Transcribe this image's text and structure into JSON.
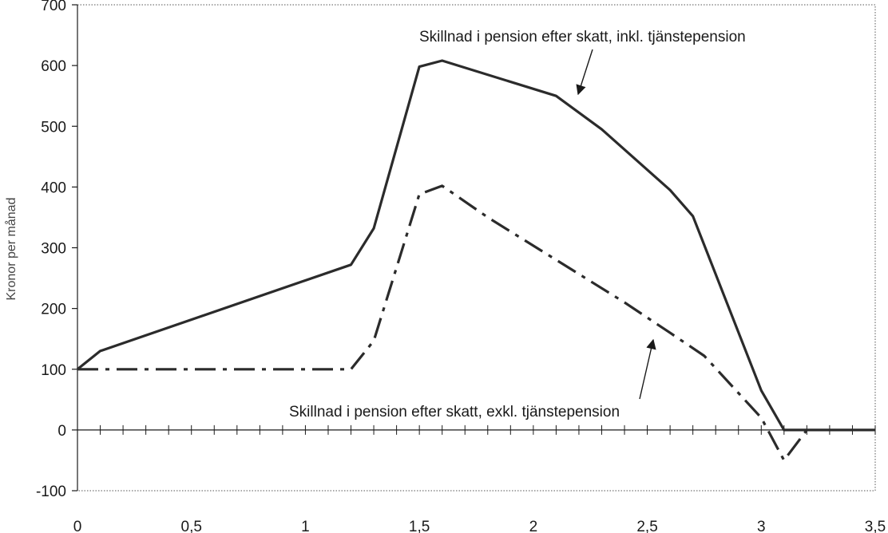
{
  "chart_data": {
    "type": "line",
    "title": "",
    "xlabel": "",
    "ylabel": "Kronor per månad",
    "xlim": [
      0,
      3.5
    ],
    "ylim": [
      -100,
      700
    ],
    "x_ticks": [
      0,
      0.5,
      1,
      1.5,
      2,
      2.5,
      3,
      3.5
    ],
    "x_tick_labels": [
      "0",
      "0,5",
      "1",
      "1,5",
      "2",
      "2,5",
      "3",
      "3,5"
    ],
    "y_ticks": [
      -100,
      0,
      100,
      200,
      300,
      400,
      500,
      600,
      700
    ],
    "y_tick_labels": [
      "-100",
      "0",
      "100",
      "200",
      "300",
      "400",
      "500",
      "600",
      "700"
    ],
    "x_minor_step": 0.1,
    "grid": false,
    "legend": "none",
    "series": [
      {
        "style": "solid",
        "color": "#2b2b2b",
        "x": [
          0,
          0.1,
          1.2,
          1.3,
          1.5,
          1.6,
          2.1,
          2.3,
          2.6,
          2.7,
          3.0,
          3.1,
          3.5
        ],
        "y": [
          100,
          130,
          272,
          332,
          598,
          608,
          550,
          495,
          395,
          352,
          65,
          0,
          0
        ]
      },
      {
        "style": "dash-dot",
        "color": "#2b2b2b",
        "x": [
          0,
          1.2,
          1.3,
          1.5,
          1.6,
          1.8,
          2.1,
          2.4,
          2.6,
          2.75,
          3.0,
          3.1,
          3.2
        ],
        "y": [
          100,
          100,
          147,
          388,
          402,
          350,
          280,
          210,
          160,
          122,
          20,
          -50,
          0
        ]
      }
    ],
    "annotations": [
      {
        "text": "Skillnad i pension efter skatt, inkl. tjänstepension",
        "points_to_series": 0
      },
      {
        "text": "Skillnad i pension efter skatt, exkl. tjänstepension",
        "points_to_series": 1
      }
    ]
  }
}
